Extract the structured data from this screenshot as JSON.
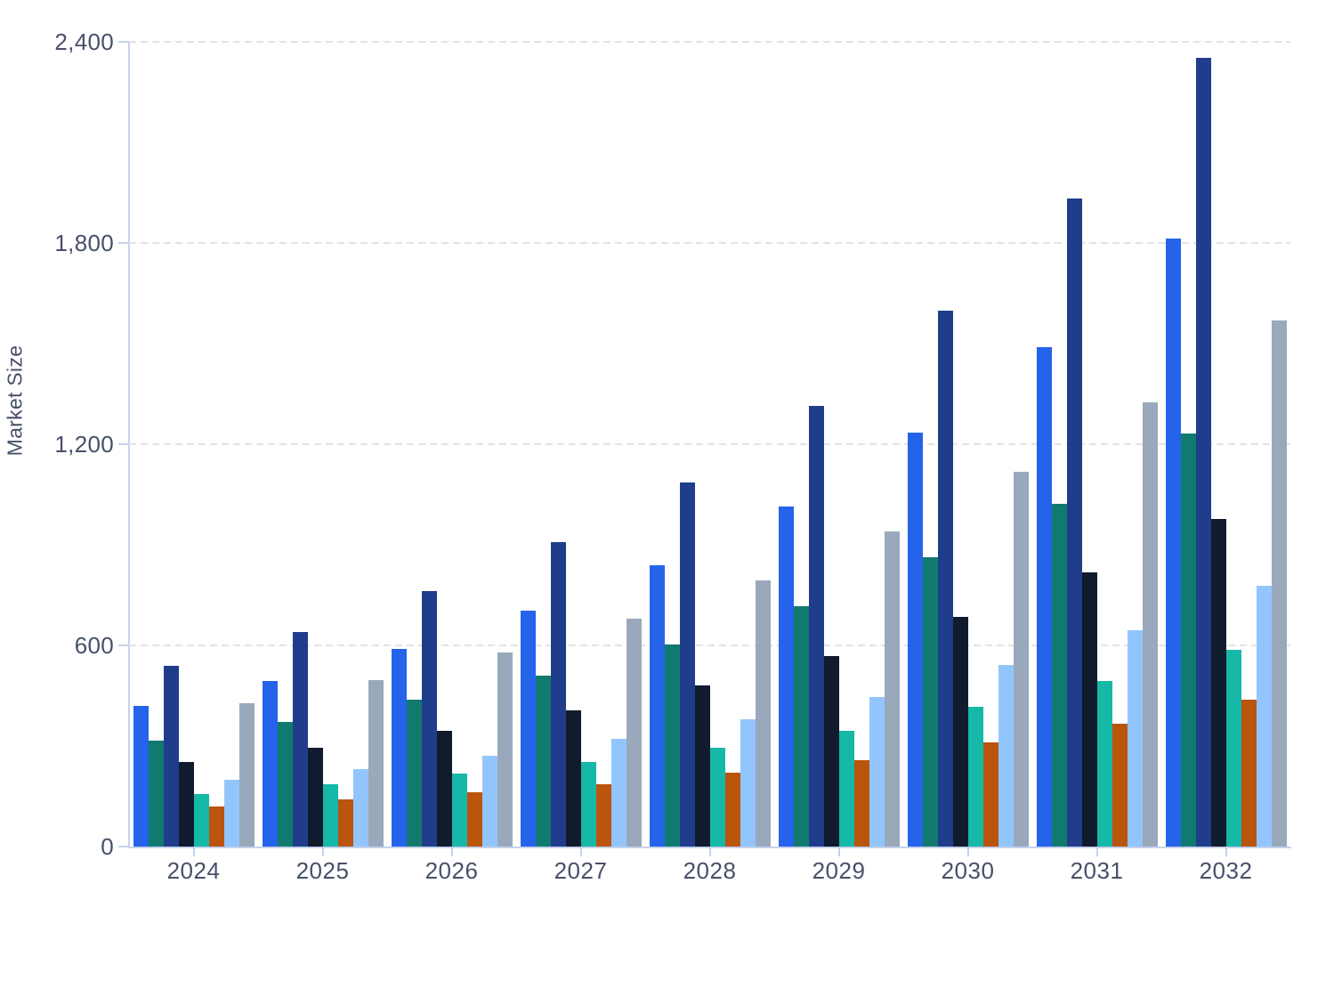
{
  "chart_data": {
    "type": "bar",
    "title": "",
    "xlabel": "",
    "ylabel": "Market Size",
    "categories": [
      "2024",
      "2025",
      "2026",
      "2027",
      "2028",
      "2029",
      "2030",
      "2031",
      "2032"
    ],
    "y_ticks": [
      "0",
      "600",
      "1,200",
      "1,800",
      "2,400"
    ],
    "ylim": [
      0,
      2400
    ],
    "grid": "horizontal dashed gridlines at every 600, on",
    "legend_position": "none",
    "series": [
      {
        "name": "blue",
        "color": "#2563EB",
        "values": [
          420,
          495,
          590,
          703,
          840,
          1015,
          1234,
          1490,
          1812
        ]
      },
      {
        "name": "dark-teal",
        "color": "#117A6F",
        "values": [
          317,
          371,
          437,
          511,
          604,
          718,
          862,
          1021,
          1232
        ]
      },
      {
        "name": "navy",
        "color": "#203D8C",
        "values": [
          539,
          640,
          762,
          909,
          1087,
          1314,
          1597,
          1934,
          2352
        ]
      },
      {
        "name": "midnight",
        "color": "#101B2E",
        "values": [
          251,
          296,
          346,
          406,
          480,
          567,
          684,
          818,
          977
        ]
      },
      {
        "name": "mint",
        "color": "#16B8A7",
        "values": [
          158,
          185,
          217,
          251,
          295,
          345,
          417,
          494,
          588
        ]
      },
      {
        "name": "burnt-orange",
        "color": "#BB540C",
        "values": [
          119,
          140,
          161,
          187,
          221,
          258,
          310,
          366,
          437
        ]
      },
      {
        "name": "light-blue",
        "color": "#93C5FD",
        "values": [
          198,
          232,
          272,
          321,
          379,
          446,
          541,
          646,
          778
        ]
      },
      {
        "name": "slate-gray",
        "color": "#9AA8BB",
        "values": [
          428,
          497,
          579,
          679,
          793,
          941,
          1117,
          1325,
          1570
        ]
      }
    ],
    "axis_color": "#C5D1EE",
    "grid_color": "#E3E3E3",
    "label_color": "#475069",
    "background_color": "#FFFFFF"
  }
}
